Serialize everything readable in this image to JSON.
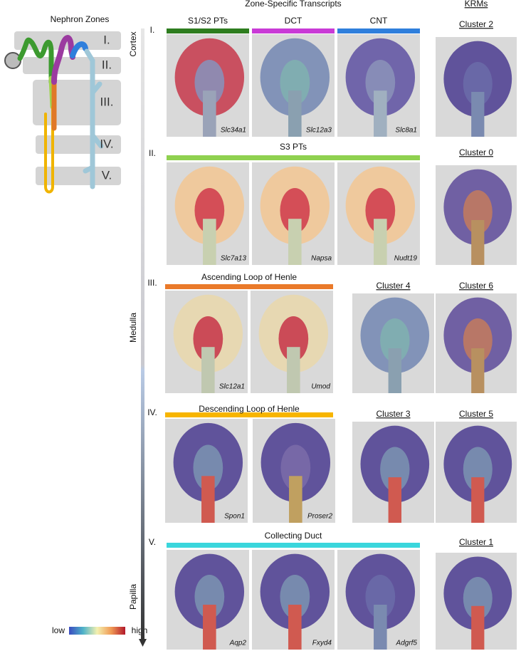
{
  "left": {
    "title": "Nephron Zones",
    "zones": [
      "I.",
      "II.",
      "III.",
      "IV.",
      "V."
    ],
    "legend": {
      "low": "low",
      "high": "high"
    }
  },
  "axis": {
    "regions": [
      "Cortex",
      "Medulla",
      "Papilla"
    ]
  },
  "header": {
    "transcripts": "Zone-Specific Transcripts",
    "krms": "KRMs"
  },
  "rows": [
    {
      "zone": "I.",
      "groups": [
        {
          "label": "S1/S2 PTs",
          "color": "#2e7d1f"
        },
        {
          "label": "DCT",
          "color": "#c93ad6"
        },
        {
          "label": "CNT",
          "color": "#2f7fdc"
        }
      ],
      "genes": [
        "Slc34a1",
        "Slc12a3",
        "Slc8a1"
      ],
      "clusters": [
        "Cluster 2"
      ]
    },
    {
      "zone": "II.",
      "groups": [
        {
          "label": "S3 PTs",
          "color": "#8fd14f"
        }
      ],
      "genes": [
        "Slc7a13",
        "Napsa",
        "Nudt19"
      ],
      "clusters": [
        "Cluster 0"
      ]
    },
    {
      "zone": "III.",
      "groups": [
        {
          "label": "Ascending Loop of Henle",
          "color": "#ea7a2a"
        }
      ],
      "genes": [
        "Slc12a1",
        "Umod"
      ],
      "clusters": [
        "Cluster 4",
        "Cluster 6"
      ]
    },
    {
      "zone": "IV.",
      "groups": [
        {
          "label": "Descending Loop of Henle",
          "color": "#f7b500"
        }
      ],
      "genes": [
        "Spon1",
        "Proser2"
      ],
      "clusters": [
        "Cluster 3",
        "Cluster 5"
      ]
    },
    {
      "zone": "V.",
      "groups": [
        {
          "label": "Collecting Duct",
          "color": "#3ad6dc"
        }
      ],
      "genes": [
        "Aqp2",
        "Fxyd4",
        "Adgrf5"
      ],
      "clusters": [
        "Cluster 1"
      ]
    }
  ]
}
